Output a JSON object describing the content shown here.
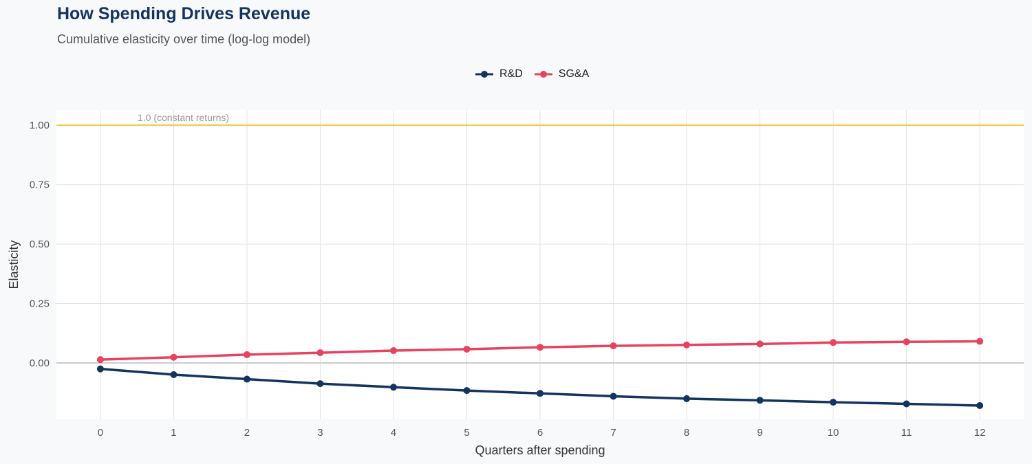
{
  "chart_data": {
    "type": "line",
    "title": "How Spending Drives Revenue",
    "subtitle": "Cumulative elasticity over time (log-log model)",
    "xlabel": "Quarters after spending",
    "ylabel": "Elasticity",
    "x": [
      0,
      1,
      2,
      3,
      4,
      5,
      6,
      7,
      8,
      9,
      10,
      11,
      12
    ],
    "xticks": [
      "0",
      "1",
      "2",
      "3",
      "4",
      "5",
      "6",
      "7",
      "8",
      "9",
      "10",
      "11",
      "12"
    ],
    "yticks": [
      {
        "v": 0,
        "label": "0.00"
      },
      {
        "v": 0.25,
        "label": "0.25"
      },
      {
        "v": 0.5,
        "label": "0.50"
      },
      {
        "v": 0.75,
        "label": "0.75"
      },
      {
        "v": 1.0,
        "label": "1.00"
      }
    ],
    "xlim": [
      -0.6,
      12.6
    ],
    "ylim": [
      -0.237,
      1.064
    ],
    "grid": true,
    "legend": "top-center",
    "series": [
      {
        "name": "R&D",
        "color": "#12345e",
        "values": [
          -0.025,
          -0.049,
          -0.068,
          -0.087,
          -0.102,
          -0.116,
          -0.128,
          -0.14,
          -0.15,
          -0.157,
          -0.165,
          -0.172,
          -0.179
        ]
      },
      {
        "name": "SG&A",
        "color": "#e8435e",
        "values": [
          0.014,
          0.024,
          0.035,
          0.043,
          0.052,
          0.058,
          0.066,
          0.072,
          0.076,
          0.08,
          0.086,
          0.089,
          0.091
        ]
      }
    ],
    "reference_line": {
      "y": 1.0,
      "label": "1.0 (constant returns)",
      "color": "#f2c54b"
    }
  }
}
